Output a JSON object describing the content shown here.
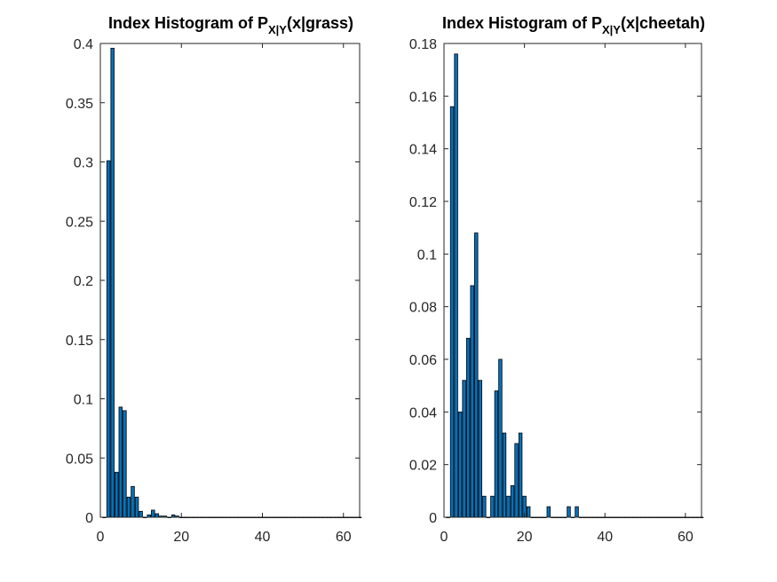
{
  "chart_data": [
    {
      "type": "bar",
      "title": {
        "main": "Index Histogram of P",
        "sub": "X|Y",
        "rest": "(x|grass)"
      },
      "xlabel": "",
      "ylabel": "",
      "xlim": [
        0,
        64
      ],
      "ylim": [
        0,
        0.4
      ],
      "xticks": [
        0,
        20,
        40,
        60
      ],
      "yticks": [
        0,
        0.05,
        0.1,
        0.15,
        0.2,
        0.25,
        0.3,
        0.35,
        0.4
      ],
      "bar_color": "#0072BD",
      "x": [
        1,
        2,
        3,
        4,
        5,
        6,
        7,
        8,
        9,
        10,
        11,
        12,
        13,
        14,
        15,
        16,
        17,
        18,
        19,
        20,
        21,
        22,
        23,
        24,
        25,
        26,
        27,
        28,
        29,
        30,
        31,
        32,
        33,
        34,
        35,
        36,
        37,
        38,
        39,
        40,
        41,
        42,
        43,
        44,
        45,
        46,
        47,
        48,
        49,
        50,
        51,
        52,
        53,
        54,
        55,
        56,
        57,
        58,
        59,
        60,
        61,
        62,
        63,
        64
      ],
      "values": [
        0,
        0.301,
        0.396,
        0.038,
        0.093,
        0.09,
        0.017,
        0.026,
        0.017,
        0.005,
        0,
        0.002,
        0.006,
        0.003,
        0.001,
        0.001,
        0,
        0.002,
        0.001,
        0,
        0,
        0,
        0,
        0,
        0,
        0,
        0,
        0,
        0,
        0,
        0,
        0,
        0,
        0,
        0,
        0,
        0,
        0,
        0,
        0,
        0,
        0,
        0,
        0,
        0,
        0,
        0,
        0,
        0,
        0,
        0,
        0,
        0,
        0,
        0,
        0,
        0,
        0,
        0,
        0,
        0,
        0,
        0,
        0
      ]
    },
    {
      "type": "bar",
      "title": {
        "main": "Index Histogram of P",
        "sub": "X|Y",
        "rest": "(x|cheetah)"
      },
      "xlabel": "",
      "ylabel": "",
      "xlim": [
        0,
        64
      ],
      "ylim": [
        0,
        0.18
      ],
      "xticks": [
        0,
        20,
        40,
        60
      ],
      "yticks": [
        0,
        0.02,
        0.04,
        0.06,
        0.08,
        0.1,
        0.12,
        0.14,
        0.16,
        0.18
      ],
      "bar_color": "#0072BD",
      "x": [
        1,
        2,
        3,
        4,
        5,
        6,
        7,
        8,
        9,
        10,
        11,
        12,
        13,
        14,
        15,
        16,
        17,
        18,
        19,
        20,
        21,
        22,
        23,
        24,
        25,
        26,
        27,
        28,
        29,
        30,
        31,
        32,
        33,
        34,
        35,
        36,
        37,
        38,
        39,
        40,
        41,
        42,
        43,
        44,
        45,
        46,
        47,
        48,
        49,
        50,
        51,
        52,
        53,
        54,
        55,
        56,
        57,
        58,
        59,
        60,
        61,
        62,
        63,
        64
      ],
      "values": [
        0,
        0.156,
        0.176,
        0.04,
        0.052,
        0.068,
        0.088,
        0.108,
        0.052,
        0.008,
        0,
        0.008,
        0.048,
        0.06,
        0.032,
        0.008,
        0.012,
        0.028,
        0.032,
        0.008,
        0.004,
        0,
        0,
        0,
        0,
        0.004,
        0,
        0,
        0,
        0,
        0.004,
        0,
        0.004,
        0,
        0,
        0,
        0,
        0,
        0,
        0,
        0,
        0,
        0,
        0,
        0,
        0,
        0,
        0,
        0,
        0,
        0,
        0,
        0,
        0,
        0,
        0,
        0,
        0,
        0,
        0,
        0,
        0,
        0,
        0
      ]
    }
  ]
}
